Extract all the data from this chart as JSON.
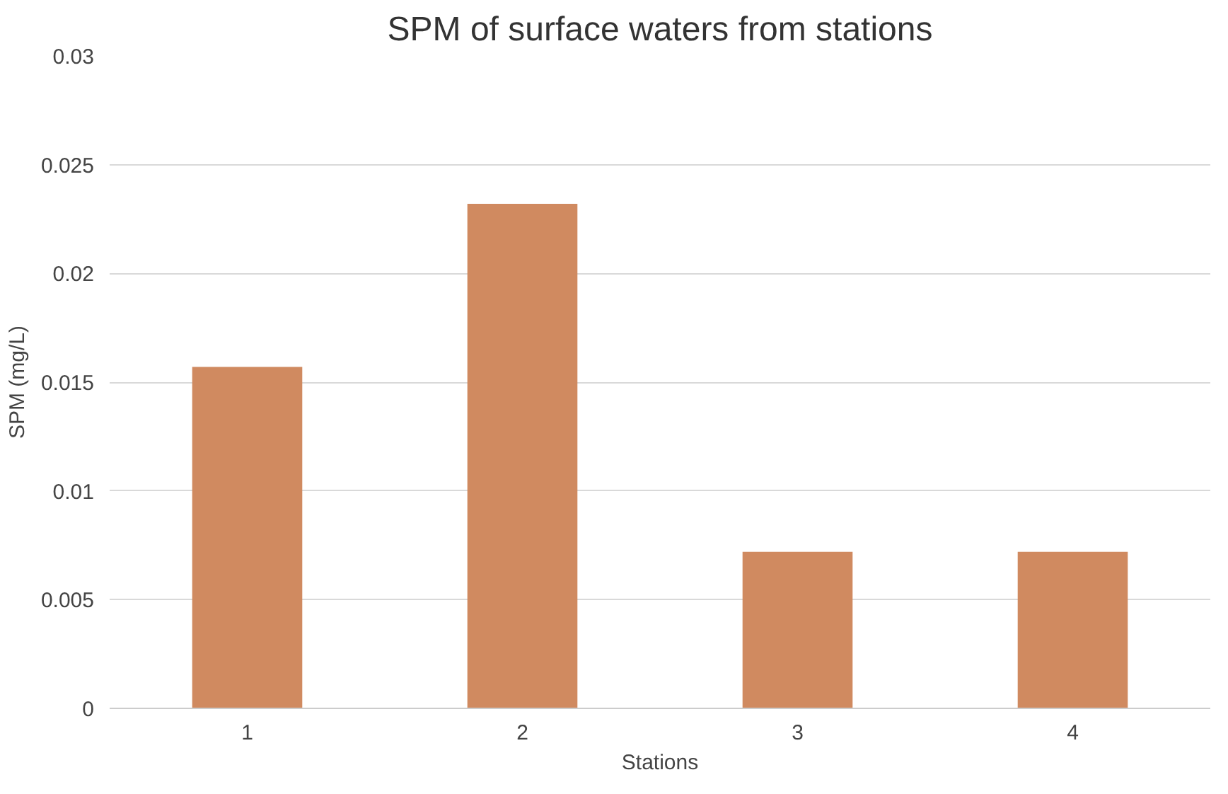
{
  "chart_data": {
    "type": "bar",
    "title": "SPM of surface waters from stations",
    "xlabel": "Stations",
    "ylabel": "SPM (mg/L)",
    "categories": [
      "1",
      "2",
      "3",
      "4"
    ],
    "values": [
      0.0157,
      0.0232,
      0.0072,
      0.0072
    ],
    "color": "#d08a60",
    "ylim": [
      0,
      0.03
    ],
    "yticks": [
      0,
      0.005,
      0.01,
      0.015,
      0.02,
      0.025,
      0.03
    ],
    "grid": "y"
  }
}
